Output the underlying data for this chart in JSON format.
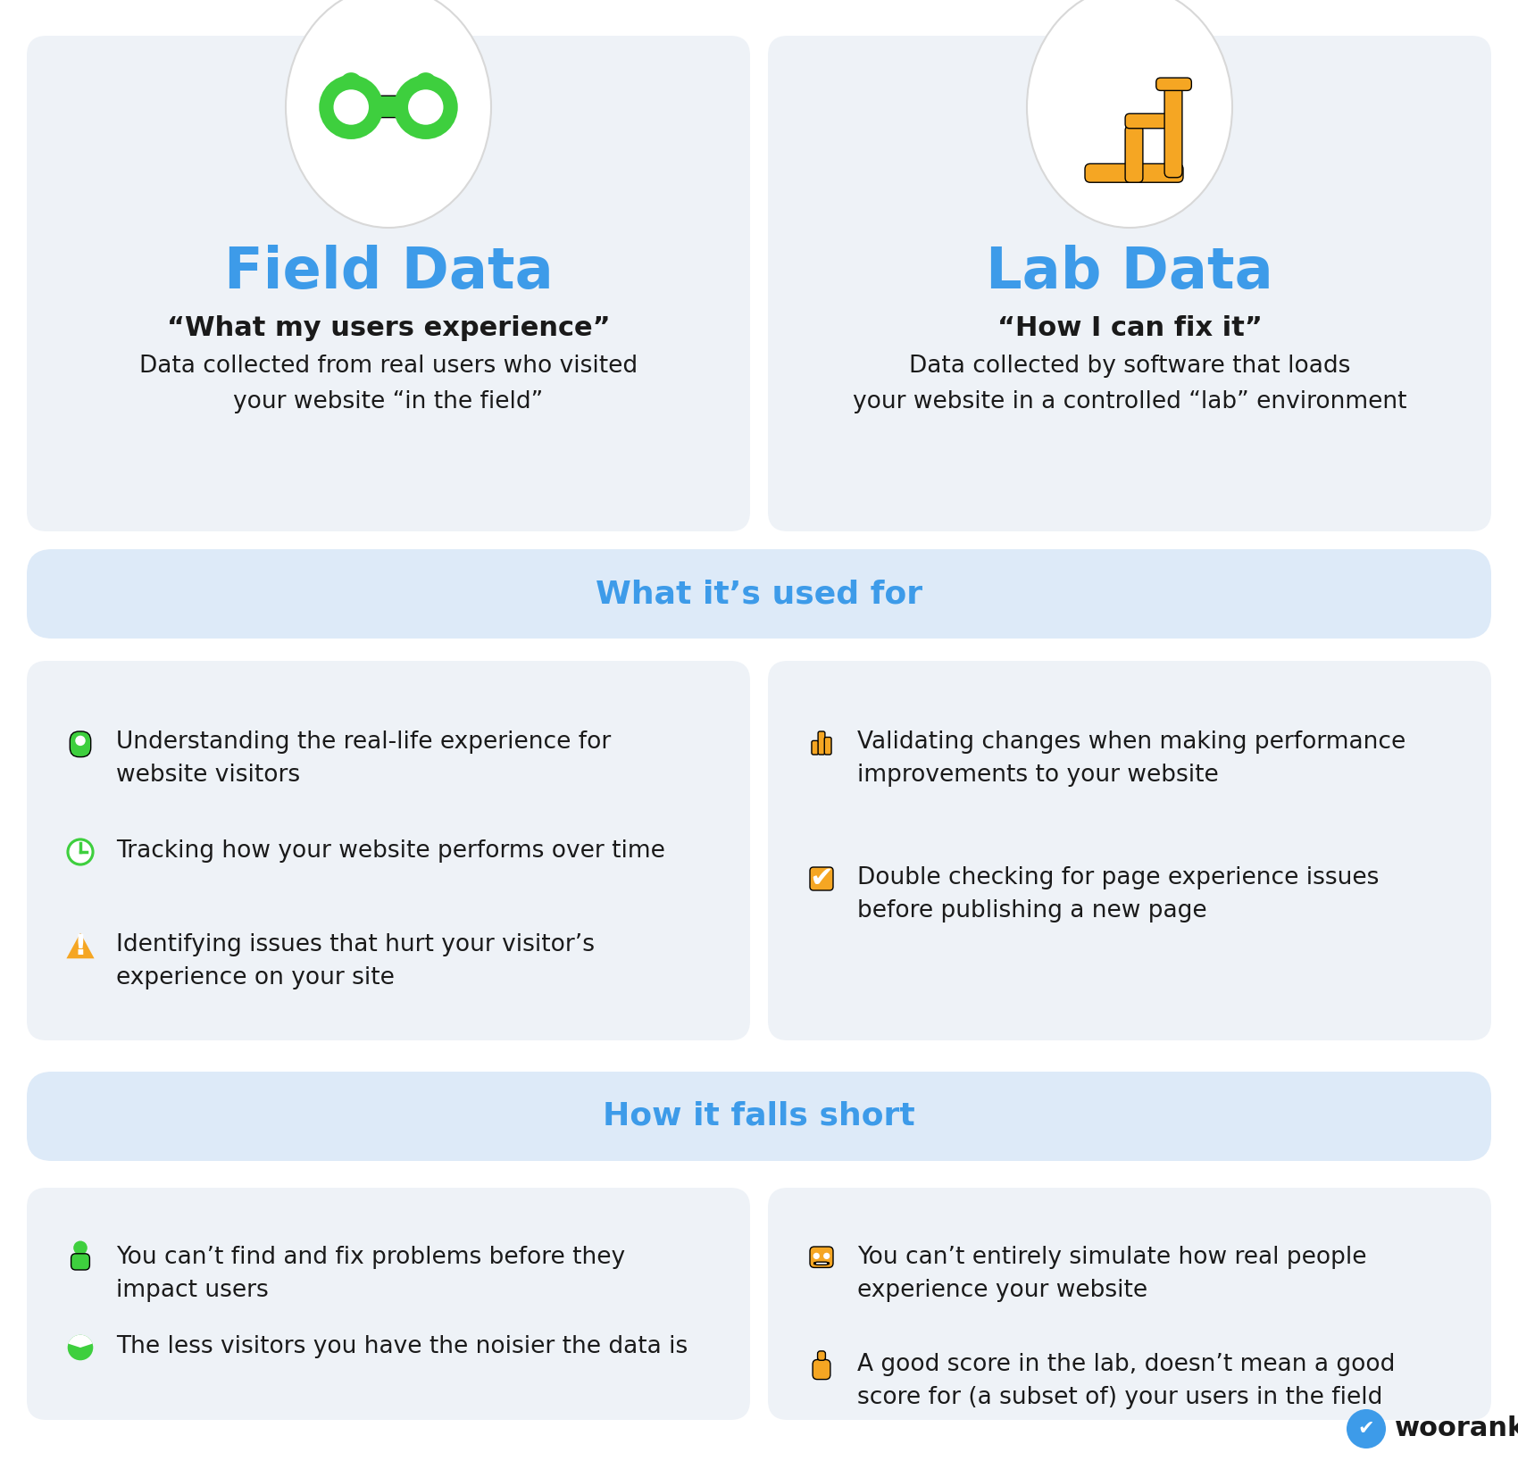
{
  "bg_color": "#ffffff",
  "card_bg": "#eef2f7",
  "section_banner_bg": "#ddeaf8",
  "blue_title": "#3d9be9",
  "text_dark": "#1a1a1a",
  "green_color": "#3ecf3e",
  "orange_color": "#f5a623",
  "field_title": "Field Data",
  "lab_title": "Lab Data",
  "field_subtitle": "“What my users experience”",
  "lab_subtitle": "“How I can fix it”",
  "field_desc": "Data collected from real users who visited\nyour website “in the field”",
  "lab_desc": "Data collected by software that loads\nyour website in a controlled “lab” environment",
  "section1_title": "What it’s used for",
  "section2_title": "How it falls short",
  "field_uses": [
    "Understanding the real-life experience for\nwebsite visitors",
    "Tracking how your website performs over time",
    "Identifying issues that hurt your visitor’s\nexperience on your site"
  ],
  "lab_uses": [
    "Validating changes when making performance\nimprovements to your website",
    "Double checking for page experience issues\nbefore publishing a new page"
  ],
  "field_short": [
    "You can’t find and fix problems before they\nimpact users",
    "The less visitors you have the noisier the data is"
  ],
  "lab_short": [
    "You can’t entirely simulate how real people\nexperience your website",
    "A good score in the lab, doesn’t mean a good\nscore for (a subset of) your users in the field"
  ]
}
